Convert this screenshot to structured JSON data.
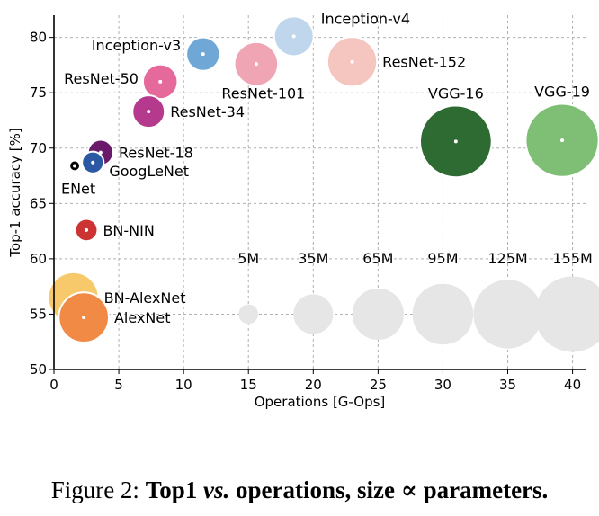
{
  "chart_data": {
    "type": "scatter",
    "title": "",
    "xlabel": "Operations [G-Ops]",
    "ylabel": "Top-1 accuracy [%]",
    "xlim": [
      0,
      41
    ],
    "ylim": [
      50,
      82
    ],
    "xticks": [
      0,
      5,
      10,
      15,
      20,
      25,
      30,
      35,
      40
    ],
    "yticks": [
      50,
      55,
      60,
      65,
      70,
      75,
      80
    ],
    "grid": true,
    "models": [
      {
        "name": "Inception-v4",
        "x": 18.5,
        "y": 80.1,
        "params": 35,
        "color": "#c0d6ec",
        "label_pos": "right-up"
      },
      {
        "name": "Inception-v3",
        "x": 11.5,
        "y": 78.5,
        "params": 23,
        "color": "#6fa8d6",
        "label_pos": "left"
      },
      {
        "name": "ResNet-101",
        "x": 15.6,
        "y": 77.6,
        "params": 44,
        "color": "#f0a5b5",
        "label_pos": "below"
      },
      {
        "name": "ResNet-152",
        "x": 23.0,
        "y": 77.8,
        "params": 60,
        "color": "#f5c5c0",
        "label_pos": "right"
      },
      {
        "name": "ResNet-50",
        "x": 8.2,
        "y": 76.0,
        "params": 25,
        "color": "#e56a9b",
        "label_pos": "left"
      },
      {
        "name": "ResNet-34",
        "x": 7.3,
        "y": 73.3,
        "params": 21,
        "color": "#b53a8e",
        "label_pos": "right"
      },
      {
        "name": "ResNet-18",
        "x": 3.6,
        "y": 69.6,
        "params": 11,
        "color": "#6a1a6b",
        "label_pos": "right"
      },
      {
        "name": "GoogLeNet",
        "x": 3.0,
        "y": 68.7,
        "params": 7,
        "color": "#2a58a3",
        "label_pos": "right-down"
      },
      {
        "name": "ENet",
        "x": 1.6,
        "y": 68.4,
        "params": 0.4,
        "color": "#000000",
        "label_pos": "below"
      },
      {
        "name": "VGG-16",
        "x": 31.0,
        "y": 70.6,
        "params": 138,
        "color": "#2e6b32",
        "label_pos": "above"
      },
      {
        "name": "VGG-19",
        "x": 39.2,
        "y": 70.7,
        "params": 144,
        "color": "#7fbf75",
        "label_pos": "above"
      },
      {
        "name": "BN-NIN",
        "x": 2.5,
        "y": 62.6,
        "params": 7.6,
        "color": "#cc3333",
        "label_pos": "right"
      },
      {
        "name": "BN-AlexNet",
        "x": 1.5,
        "y": 56.5,
        "params": 62,
        "color": "#f7c96a",
        "label_pos": "right"
      },
      {
        "name": "AlexNet",
        "x": 2.3,
        "y": 54.7,
        "params": 61,
        "color": "#f08a45",
        "label_pos": "right"
      }
    ],
    "size_legend": [
      {
        "label": "5M",
        "x": 15,
        "y": 55,
        "params": 5
      },
      {
        "label": "35M",
        "x": 20,
        "y": 55,
        "params": 35
      },
      {
        "label": "65M",
        "x": 25,
        "y": 55,
        "params": 65
      },
      {
        "label": "95M",
        "x": 30,
        "y": 55,
        "params": 95
      },
      {
        "label": "125M",
        "x": 35,
        "y": 55,
        "params": 125
      },
      {
        "label": "155M",
        "x": 40,
        "y": 55,
        "params": 155
      }
    ],
    "size_legend_color": "#e6e6e6"
  },
  "caption": {
    "prefix": "Figure 2: ",
    "part1": "Top1 ",
    "part2": "vs.",
    "part3": " operations, size ∝ parameters."
  }
}
